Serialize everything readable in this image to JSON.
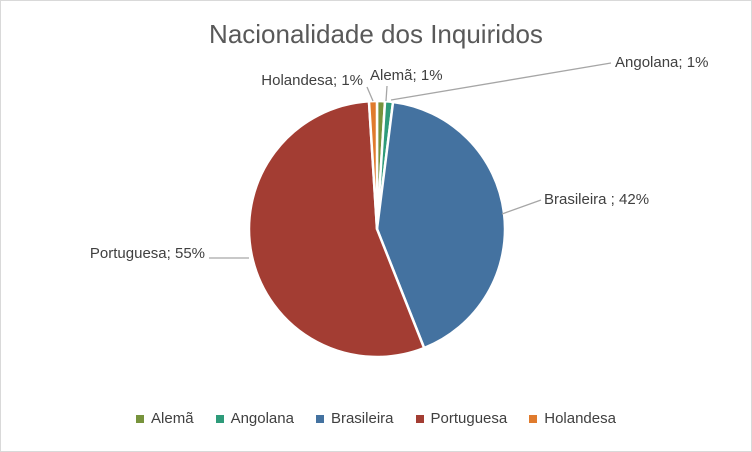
{
  "chart_data": {
    "type": "pie",
    "title": "Nacionalidade dos Inquiridos",
    "categories": [
      "Alemã",
      "Angolana",
      "Brasileira",
      "Portuguesa",
      "Holandesa"
    ],
    "values": [
      1,
      1,
      42,
      55,
      1
    ],
    "colors": [
      "#77933c",
      "#2e9b7a",
      "#4472a0",
      "#a33d33",
      "#e07b2d"
    ],
    "data_labels": [
      "Alemã; 1%",
      "Angolana; 1%",
      "Brasileira ; 42%",
      "Portuguesa; 55%",
      "Holandesa; 1%"
    ],
    "legend": "bottom"
  }
}
